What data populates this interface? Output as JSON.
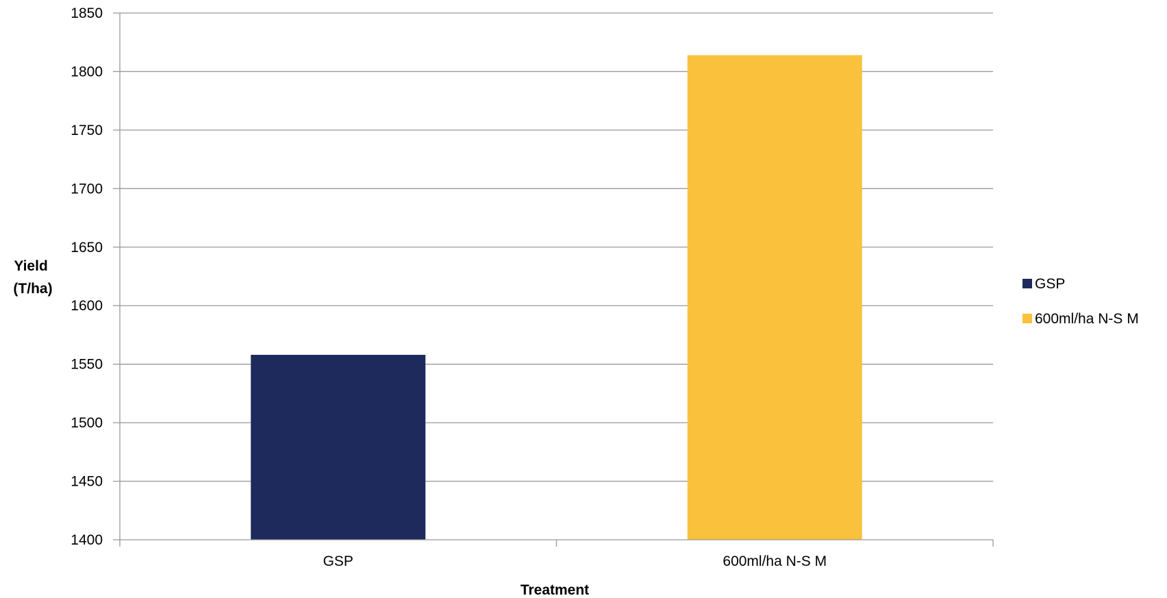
{
  "chart_data": {
    "type": "bar",
    "categories": [
      "GSP",
      "600ml/ha N-S M"
    ],
    "values": [
      1558,
      1814
    ],
    "colors": [
      "#1f2a5c",
      "#f9c13c"
    ],
    "title": "",
    "xlabel": "Treatment",
    "ylabel": [
      "Yield",
      "(T/ha)"
    ],
    "ylim": [
      1400,
      1850
    ],
    "ytick_step": 50,
    "grid": true,
    "legend": {
      "position": "right",
      "entries": [
        {
          "label": "GSP",
          "color": "#1f2a5c"
        },
        {
          "label": "600ml/ha N-S M",
          "color": "#f9c13c"
        }
      ]
    }
  }
}
